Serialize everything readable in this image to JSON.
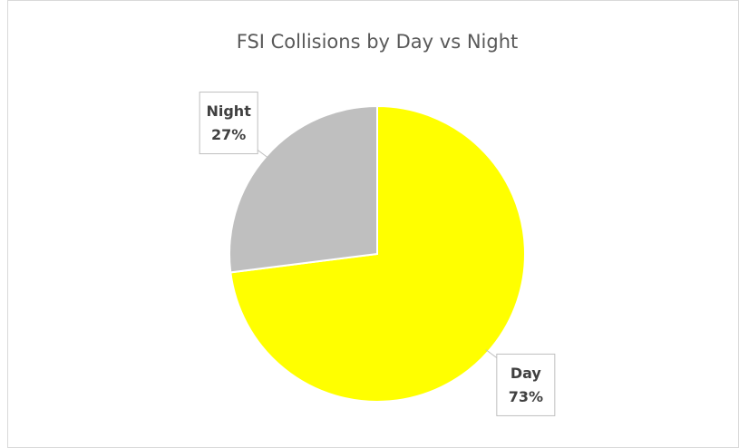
{
  "chart_data": {
    "type": "pie",
    "title": "FSI Collisions by Day vs Night",
    "categories": [
      "Day",
      "Night"
    ],
    "values": [
      73,
      27
    ],
    "value_labels": [
      "73%",
      "27%"
    ],
    "colors": [
      "#ffff00",
      "#bfbfbf"
    ]
  }
}
